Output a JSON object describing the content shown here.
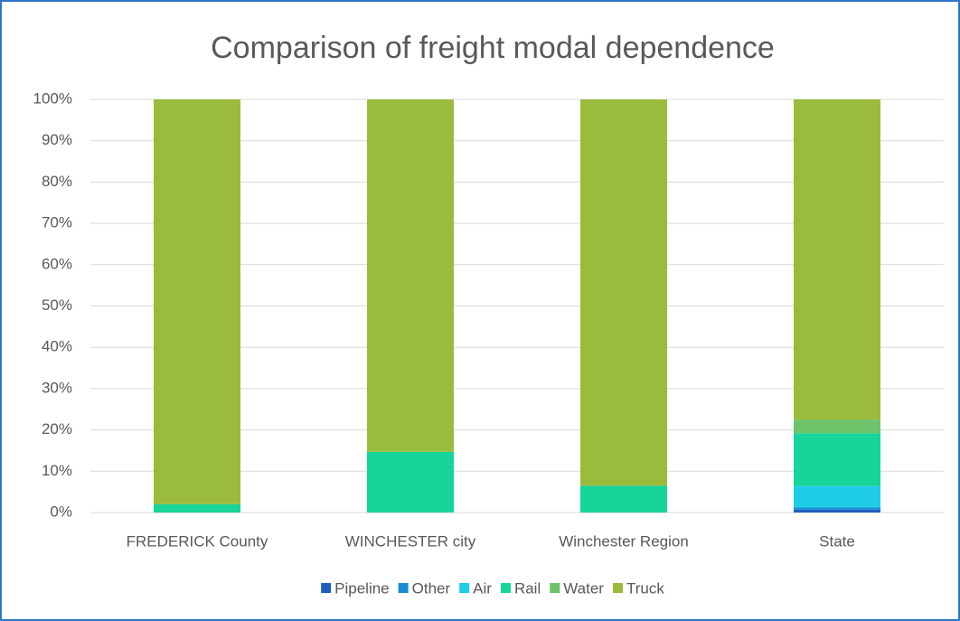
{
  "chart_data": {
    "type": "stacked_bar",
    "title": "Comparison of freight modal dependence",
    "categories": [
      "FREDERICK County",
      "WINCHESTER city",
      "Winchester Region",
      "State"
    ],
    "series": [
      {
        "name": "Pipeline",
        "color": "#1f5fbf",
        "values": [
          0,
          0,
          0,
          0.7
        ]
      },
      {
        "name": "Other",
        "color": "#1a8ad6",
        "values": [
          0,
          0,
          0,
          0.5
        ]
      },
      {
        "name": "Air",
        "color": "#1fcde8",
        "values": [
          0,
          0,
          0,
          5.2
        ]
      },
      {
        "name": "Rail",
        "color": "#16d49a",
        "values": [
          2,
          14.7,
          6.5,
          12.8
        ]
      },
      {
        "name": "Water",
        "color": "#6cc36a",
        "values": [
          0,
          0,
          0,
          3.3
        ]
      },
      {
        "name": "Truck",
        "color": "#9bbb3c",
        "values": [
          98,
          85.3,
          93.5,
          77.5
        ]
      }
    ],
    "ylim": [
      0,
      100
    ],
    "yticks": [
      {
        "value": 0,
        "label": "0%"
      },
      {
        "value": 10,
        "label": "10%"
      },
      {
        "value": 20,
        "label": "20%"
      },
      {
        "value": 30,
        "label": "30%"
      },
      {
        "value": 40,
        "label": "40%"
      },
      {
        "value": 50,
        "label": "50%"
      },
      {
        "value": 60,
        "label": "60%"
      },
      {
        "value": 70,
        "label": "70%"
      },
      {
        "value": 80,
        "label": "80%"
      },
      {
        "value": 90,
        "label": "90%"
      },
      {
        "value": 100,
        "label": "100%"
      }
    ],
    "grid": true,
    "legend": "bottom"
  }
}
